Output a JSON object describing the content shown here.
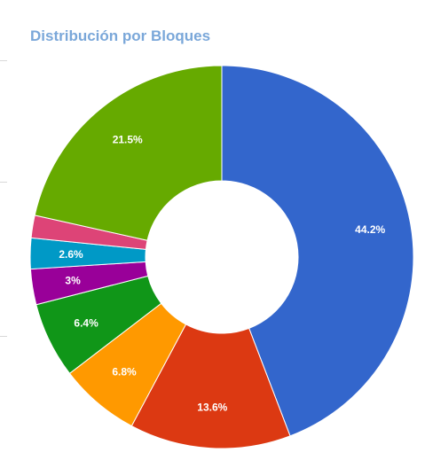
{
  "chart_data": {
    "type": "pie",
    "title": "Distribución por Bloques",
    "donut": true,
    "legend": "none",
    "slices": [
      {
        "value": 44.2,
        "label": "44.2%",
        "color": "#3366cc"
      },
      {
        "value": 13.6,
        "label": "13.6%",
        "color": "#dc3912"
      },
      {
        "value": 6.8,
        "label": "6.8%",
        "color": "#ff9900"
      },
      {
        "value": 6.4,
        "label": "6.4%",
        "color": "#109618"
      },
      {
        "value": 3.0,
        "label": "3%",
        "color": "#990099"
      },
      {
        "value": 2.6,
        "label": "2.6%",
        "color": "#0099c6"
      },
      {
        "value": 1.9,
        "label": "",
        "color": "#dd4477"
      },
      {
        "value": 21.5,
        "label": "21.5%",
        "color": "#66aa00"
      }
    ]
  }
}
